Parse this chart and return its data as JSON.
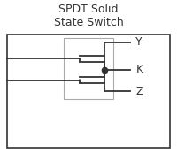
{
  "title": "SPDT Solid\nState Switch",
  "title_fontsize": 9,
  "label_Y": "Y",
  "label_K": "K",
  "label_Z": "Z",
  "label_fontsize": 9,
  "bg_color": "#ffffff",
  "line_color": "#333333",
  "dash_color": "#333333",
  "inner_rect_color": "#aaaaaa",
  "dot_size": 4.5,
  "lw": 1.3
}
